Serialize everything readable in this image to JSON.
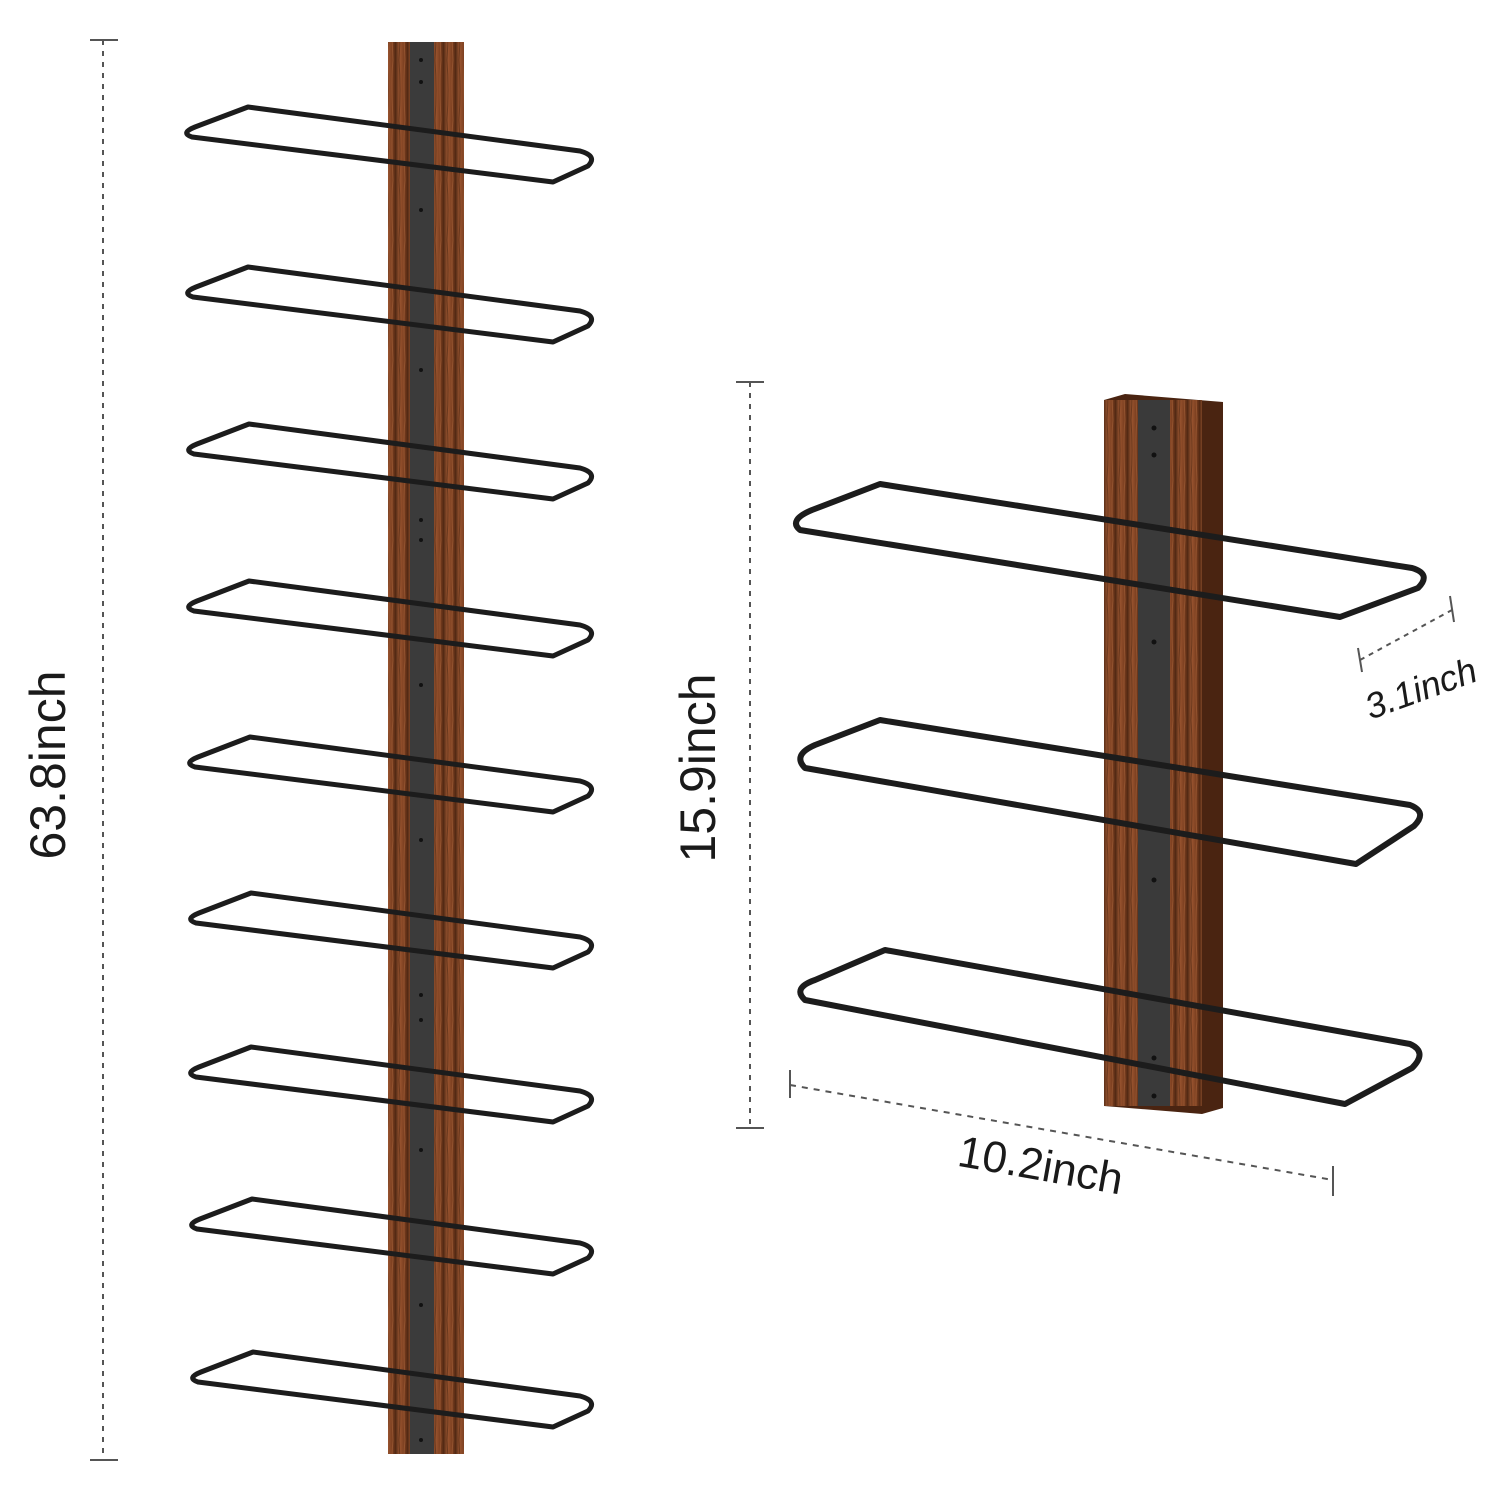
{
  "tall_rack": {
    "height_label": "63.8inch",
    "rack_count": 9
  },
  "short_rack": {
    "height_label": "15.9inch",
    "width_label": "10.2inch",
    "depth_label": "3.1inch",
    "rack_count": 3
  },
  "colors": {
    "background": "#ffffff",
    "wood_dark": "#5a2f18",
    "wood_mid": "#8a4a27",
    "wood_light": "#a8643a",
    "metal_strip": "#3a3a3a",
    "wire": "#1c1c1c",
    "dimension_line": "#555555",
    "label": "#1a1a1a"
  }
}
